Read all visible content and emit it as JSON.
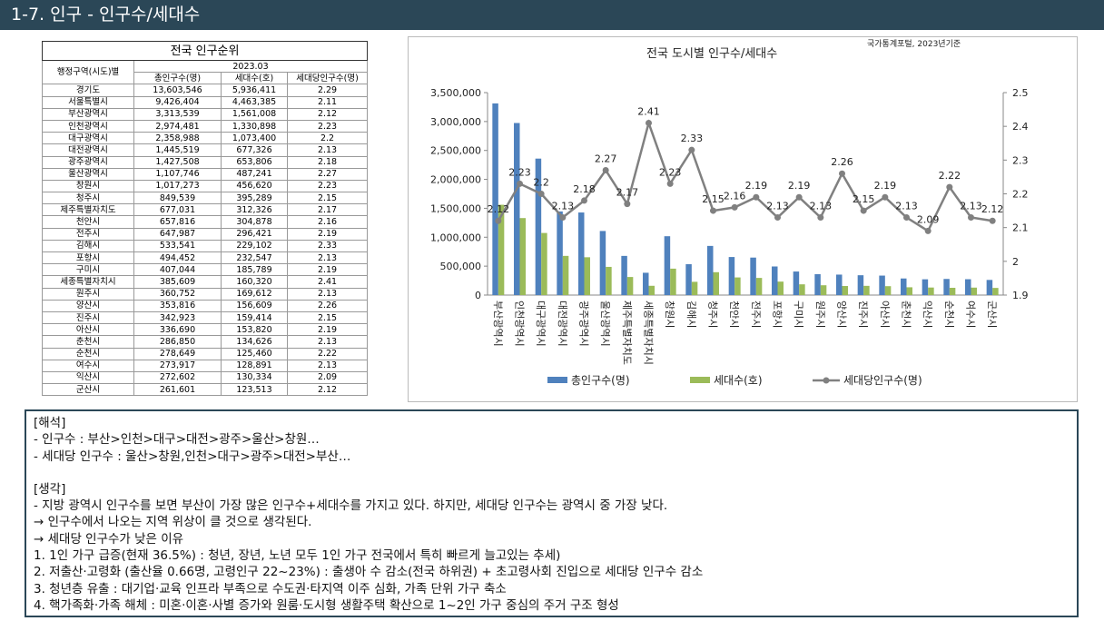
{
  "header": {
    "title": "1-7. 인구 - 인구수/세대수"
  },
  "table": {
    "title": "전국 인구순위",
    "region_header": "행정구역(시도)별",
    "period": "2023.03",
    "columns": [
      "총인구수(명)",
      "세대수(호)",
      "세대당인구수(명)"
    ],
    "rows": [
      [
        "경기도",
        "13,603,546",
        "5,936,411",
        "2.29"
      ],
      [
        "서울특별시",
        "9,426,404",
        "4,463,385",
        "2.11"
      ],
      [
        "부산광역시",
        "3,313,539",
        "1,561,008",
        "2.12"
      ],
      [
        "인천광역시",
        "2,974,481",
        "1,330,898",
        "2.23"
      ],
      [
        "대구광역시",
        "2,358,988",
        "1,073,400",
        "2.2"
      ],
      [
        "대전광역시",
        "1,445,519",
        "677,326",
        "2.13"
      ],
      [
        "광주광역시",
        "1,427,508",
        "653,806",
        "2.18"
      ],
      [
        "울산광역시",
        "1,107,746",
        "487,241",
        "2.27"
      ],
      [
        "창원시",
        "1,017,273",
        "456,620",
        "2.23"
      ],
      [
        "청주시",
        "849,539",
        "395,289",
        "2.15"
      ],
      [
        "제주특별자치도",
        "677,031",
        "312,326",
        "2.17"
      ],
      [
        "천안시",
        "657,816",
        "304,878",
        "2.16"
      ],
      [
        "전주시",
        "647,987",
        "296,421",
        "2.19"
      ],
      [
        "김해시",
        "533,541",
        "229,102",
        "2.33"
      ],
      [
        "포항시",
        "494,452",
        "232,547",
        "2.13"
      ],
      [
        "구미시",
        "407,044",
        "185,789",
        "2.19"
      ],
      [
        "세종특별자치시",
        "385,609",
        "160,320",
        "2.41"
      ],
      [
        "원주시",
        "360,752",
        "169,612",
        "2.13"
      ],
      [
        "양산시",
        "353,816",
        "156,609",
        "2.26"
      ],
      [
        "진주시",
        "342,923",
        "159,414",
        "2.15"
      ],
      [
        "아산시",
        "336,690",
        "153,820",
        "2.19"
      ],
      [
        "춘천시",
        "286,850",
        "134,626",
        "2.13"
      ],
      [
        "순천시",
        "278,649",
        "125,460",
        "2.22"
      ],
      [
        "여수시",
        "273,917",
        "128,891",
        "2.13"
      ],
      [
        "익산시",
        "272,602",
        "130,334",
        "2.09"
      ],
      [
        "군산시",
        "261,601",
        "123,513",
        "2.12"
      ]
    ]
  },
  "chart_data": {
    "type": "bar",
    "title": "전국 도시별 인구수/세대수",
    "source": "국가통계포털, 2023년기준",
    "categories": [
      "부산광역시",
      "인천광역시",
      "대구광역시",
      "대전광역시",
      "광주광역시",
      "울산광역시",
      "제주특별자치도",
      "세종특별자치시",
      "창원시",
      "김해시",
      "청주시",
      "천안시",
      "전주시",
      "포항시",
      "구미시",
      "원주시",
      "양산시",
      "진주시",
      "아산시",
      "춘천시",
      "익산시",
      "순천시",
      "여수시",
      "군산시"
    ],
    "series": [
      {
        "name": "총인구수(명)",
        "type": "bar",
        "color": "#4f81bd",
        "values": [
          3313539,
          2974481,
          2358988,
          1445519,
          1427508,
          1107746,
          677031,
          385609,
          1017273,
          533541,
          849539,
          657816,
          647987,
          494452,
          407044,
          360752,
          353816,
          342923,
          336690,
          286850,
          272602,
          278649,
          273917,
          261601
        ]
      },
      {
        "name": "세대수(호)",
        "type": "bar",
        "color": "#9bbb59",
        "values": [
          1561008,
          1330898,
          1073400,
          677326,
          653806,
          487241,
          312326,
          160320,
          456620,
          229102,
          395289,
          304878,
          296421,
          232547,
          185789,
          169612,
          156609,
          159414,
          153820,
          134626,
          130334,
          125460,
          128891,
          123513
        ]
      },
      {
        "name": "세대당인구수(명)",
        "type": "line",
        "axis": "y2",
        "color": "#808080",
        "values": [
          2.12,
          2.23,
          2.2,
          2.13,
          2.18,
          2.27,
          2.17,
          2.41,
          2.23,
          2.33,
          2.15,
          2.16,
          2.19,
          2.13,
          2.19,
          2.13,
          2.26,
          2.15,
          2.19,
          2.13,
          2.09,
          2.22,
          2.13,
          2.12
        ]
      }
    ],
    "ylim": [
      0,
      3500000
    ],
    "yticks": [
      0,
      {
        "value": 500000,
        "label": "500,000"
      },
      {
        "value": 1000000,
        "label": "1,000,000"
      },
      {
        "value": 1500000,
        "label": "1,500,000"
      },
      {
        "value": 2000000,
        "label": "2,000,000"
      },
      {
        "value": 2500000,
        "label": "2,500,000"
      },
      {
        "value": 3000000,
        "label": "3,000,000"
      },
      {
        "value": 3500000,
        "label": "3,500,000"
      }
    ],
    "y2lim": [
      1.9,
      2.5
    ],
    "y2ticks": [
      1.9,
      2,
      2.1,
      2.2,
      2.3,
      2.4,
      2.5
    ],
    "legend": "bottom"
  },
  "notes": {
    "interpretation": {
      "title": "[해석]",
      "items": [
        "-   인구수 : 부산>인천>대구>대전>광주>울산>창원…",
        "-   세대당 인구수 : 울산>창원,인천>대구>광주>대전>부산…"
      ]
    },
    "thoughts": {
      "title": "[생각]",
      "lines": [
        "-   지방 광역시 인구수를 보면 부산이 가장 많은 인구수+세대수를 가지고 있다. 하지만, 세대당 인구수는 광역시 중 가장 낮다.",
        "→ 인구수에서 나오는 지역 위상이 클 것으로 생각된다.",
        "→ 세대당 인구수가 낮은 이유",
        "1.   1인 가구 급증(현재 36.5%) : 청년, 장년, 노년 모두 1인 가구 전국에서 특히 빠르게 늘고있는 추세)",
        "2.   저출산·고령화 (출산율 0.66명, 고령인구 22~23%) : 출생아 수 감소(전국 하위권) + 초고령사회 진입으로 세대당 인구수 감소",
        "3.   청년층 유출 : 대기업·교육 인프라 부족으로 수도권·타지역 이주 심화, 가족 단위 가구 축소",
        "4.   핵가족화·가족 해체 : 미혼·이혼·사별 증가와 원룸·도시형 생활주택 확산으로 1~2인 가구 중심의 주거 구조 형성"
      ]
    }
  }
}
